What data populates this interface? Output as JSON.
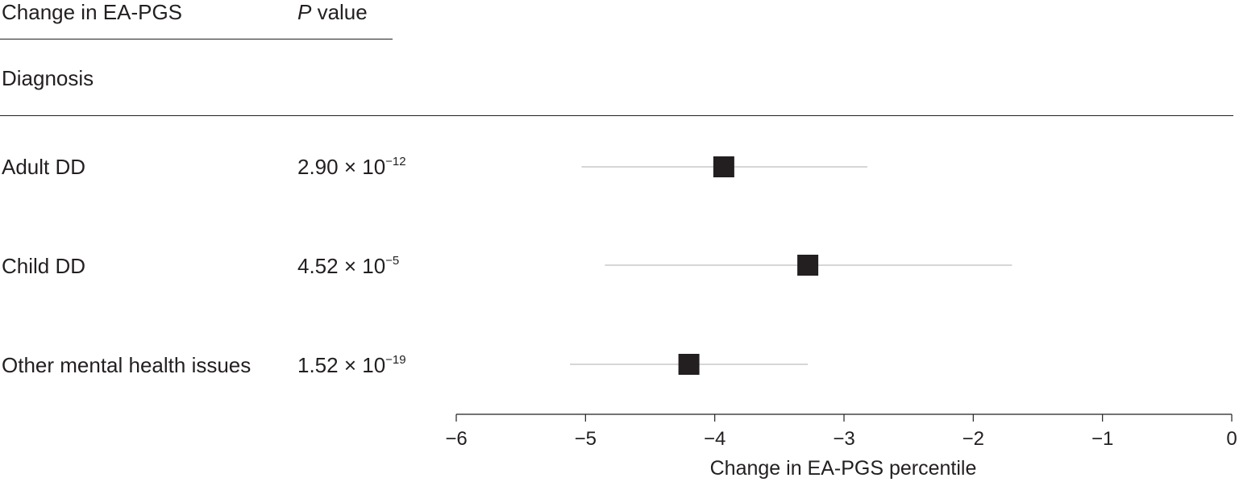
{
  "header": {
    "effect_label": "Change in EA-PGS",
    "p_label_italic": "P",
    "p_label_rest": " value"
  },
  "section_label": "Diagnosis",
  "chart_data": {
    "type": "forest",
    "xlabel": "Change in EA-PGS percentile",
    "xlim": [
      -6,
      0
    ],
    "xticks": [
      -6,
      -5,
      -4,
      -3,
      -2,
      -1,
      0
    ],
    "xtick_labels": [
      "−6",
      "−5",
      "−4",
      "−3",
      "−2",
      "−1",
      "0"
    ],
    "rows": [
      {
        "label": "Adult DD",
        "p_mantissa": "2.90 × 10",
        "p_exponent": "−12",
        "estimate": -3.93,
        "ci_low": -5.03,
        "ci_high": -2.82
      },
      {
        "label": "Child DD",
        "p_mantissa": "4.52 × 10",
        "p_exponent": "−5",
        "estimate": -3.28,
        "ci_low": -4.85,
        "ci_high": -1.7
      },
      {
        "label": "Other mental health issues",
        "p_mantissa": "1.52 × 10",
        "p_exponent": "−19",
        "estimate": -4.2,
        "ci_low": -5.12,
        "ci_high": -3.28
      }
    ],
    "colors": {
      "marker": "#231f20",
      "ci_line": "#bdbdbd",
      "axis": "#231f20"
    }
  }
}
